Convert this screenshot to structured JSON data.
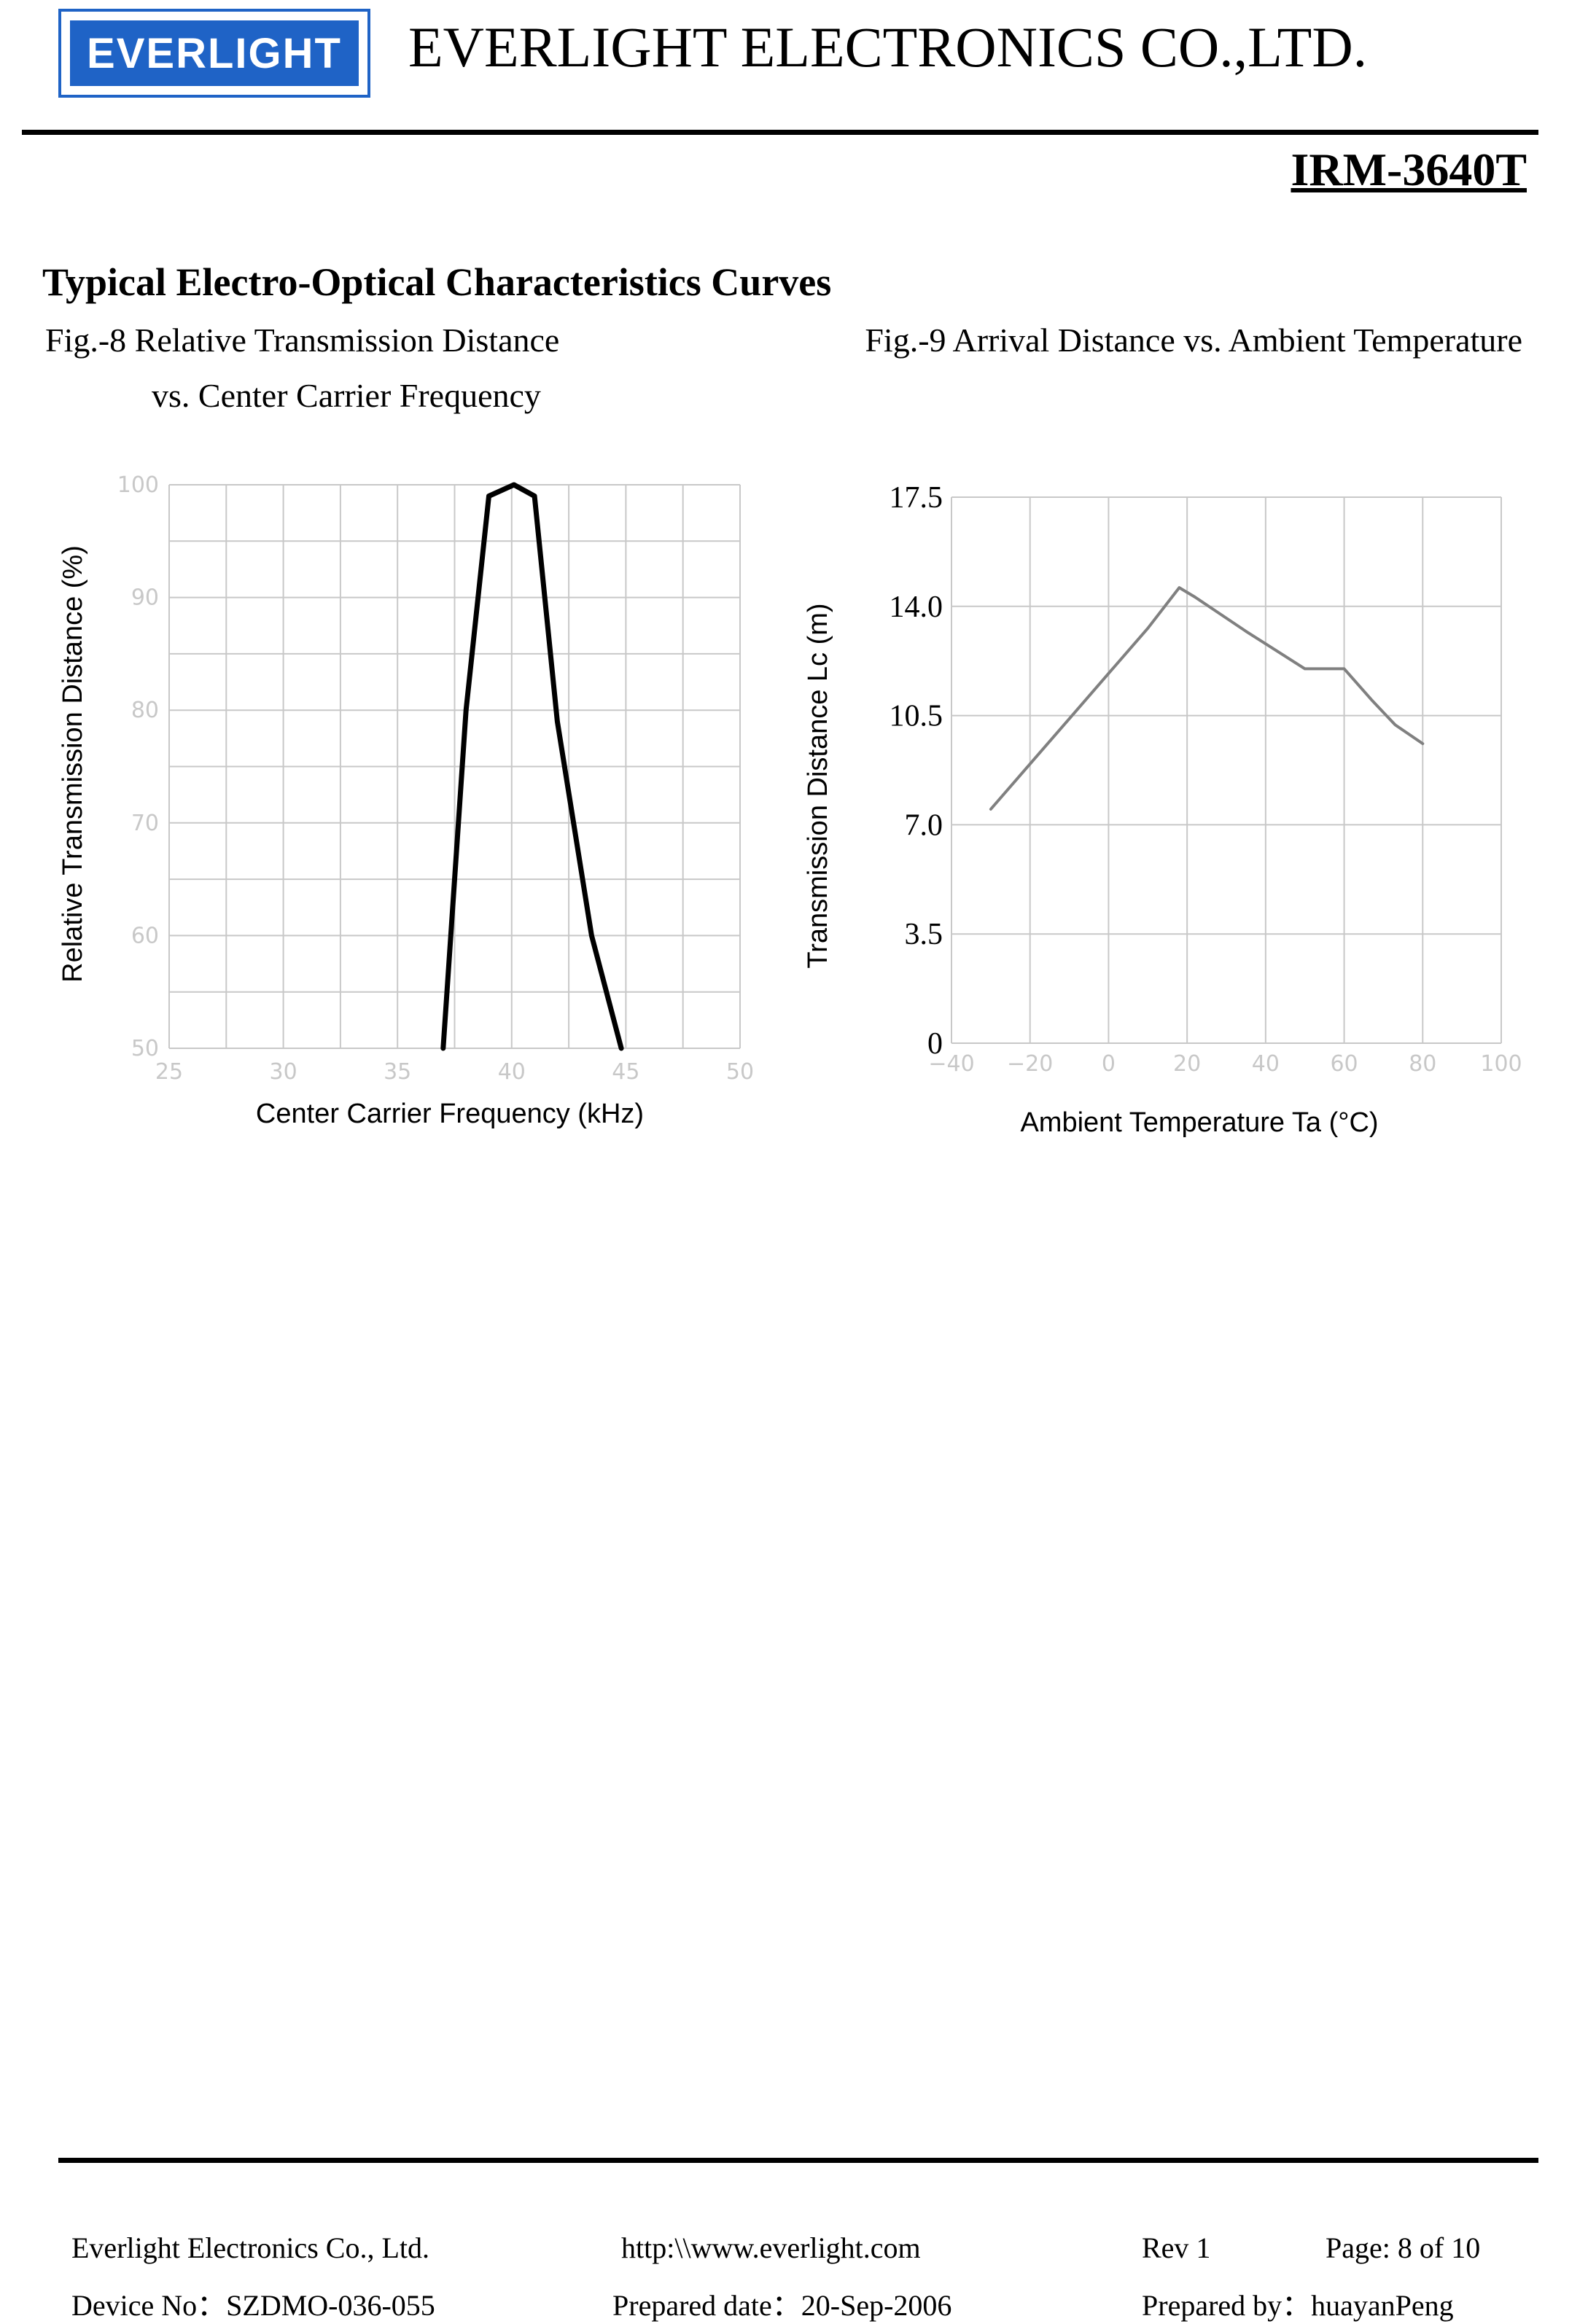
{
  "header": {
    "logo_text": "EVERLIGHT",
    "company_name": "EVERLIGHT ELECTRONICS CO.,LTD.",
    "part_number": "IRM-3640T"
  },
  "section_title": "Typical Electro-Optical Characteristics Curves",
  "colors": {
    "logo_blue": "#1f63c6",
    "grid": "#c8c8c8",
    "fig9_line": "#808080"
  },
  "fig8": {
    "caption_line1": "Fig.-8 Relative Transmission Distance",
    "caption_line2": "vs. Center Carrier Frequency"
  },
  "fig9": {
    "caption": "Fig.-9 Arrival Distance vs. Ambient Temperature"
  },
  "chart_data": [
    {
      "type": "line",
      "xlabel": "Center Carrier Frequency  (kHz)",
      "ylabel": "Relative Transmission Distance (%)",
      "xlim": [
        25,
        50
      ],
      "ylim": [
        50,
        100
      ],
      "xticks": [
        "25",
        "30",
        "35",
        "40",
        "45",
        "50"
      ],
      "yticks": [
        "50",
        "60",
        "70",
        "80",
        "90",
        "100"
      ],
      "grid": true,
      "series": [
        {
          "x": [
            37.0,
            38.0,
            39.0,
            40.1,
            41.0,
            42.0,
            43.5,
            44.8
          ],
          "y": [
            50,
            80,
            99,
            100,
            99,
            79,
            60,
            50
          ]
        }
      ]
    },
    {
      "type": "line",
      "xlabel": "Ambient Temperature Ta (°C)",
      "ylabel": "Transmission Distance Lc (m)",
      "xlim": [
        -40,
        100
      ],
      "ylim": [
        0,
        17.5
      ],
      "xticks": [
        "−40",
        "−20",
        "0",
        "20",
        "40",
        "60",
        "80",
        "100"
      ],
      "yticks": [
        "0",
        "3.5",
        "7.0",
        "10.5",
        "14.0",
        "17.5"
      ],
      "grid": true,
      "series": [
        {
          "x": [
            -30,
            -10,
            10,
            18,
            22,
            35,
            50,
            60,
            67,
            73,
            80
          ],
          "y": [
            7.5,
            10.4,
            13.3,
            14.6,
            14.3,
            13.2,
            12.0,
            12.0,
            11.0,
            10.2,
            9.6
          ]
        }
      ]
    }
  ],
  "footer": {
    "company": "Everlight Electronics Co., Ltd.",
    "url": "http:\\\\www.everlight.com",
    "rev": "Rev 1",
    "page": "Page: 8 of 10",
    "device_no": "Device No：SZDMO-036-055",
    "prepared_date": "Prepared date：20-Sep-2006",
    "prepared_by": "Prepared by：huayanPeng"
  }
}
